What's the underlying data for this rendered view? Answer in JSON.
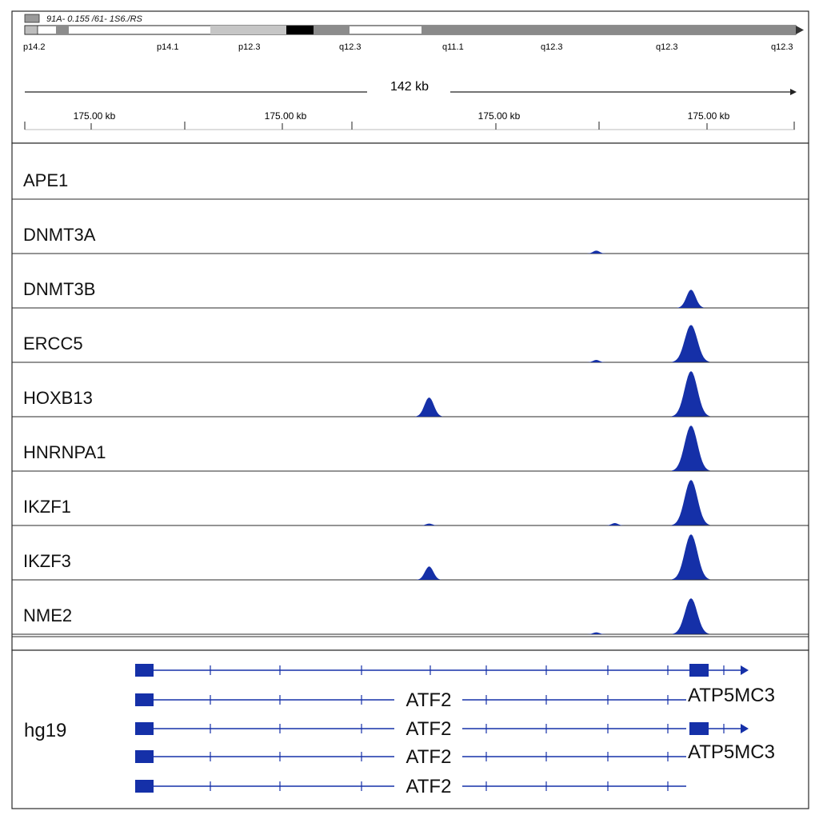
{
  "ideogram": {
    "title": "91A- 0.155 /61- 1S6./RS",
    "bands": [
      {
        "label": "p14.2",
        "shade": "#ffffff"
      },
      {
        "label": "p14.1",
        "shade": "#ffffff"
      },
      {
        "label": "p12.3",
        "shade": "#c8c8c8"
      },
      {
        "label": "q12.3",
        "shade": "#000000"
      },
      {
        "label": "q11.1",
        "shade": "#ffffff"
      },
      {
        "label": "q12.3",
        "shade": "#8c8c8c"
      },
      {
        "label": "q12.3",
        "shade": "#8c8c8c"
      },
      {
        "label": "q12.3",
        "shade": "#8c8c8c"
      }
    ]
  },
  "ruler": {
    "span_label": "142 kb",
    "ticks": [
      "175.00 kb",
      "175.00 kb",
      "175.00 kb",
      "175.00 kb"
    ]
  },
  "tracks": [
    {
      "name": "APE1",
      "peaks": []
    },
    {
      "name": "DNMT3A",
      "peaks": [
        {
          "pos": 0.742,
          "h": 0.06
        }
      ]
    },
    {
      "name": "DNMT3B",
      "peaks": [
        {
          "pos": 0.865,
          "h": 0.38
        }
      ]
    },
    {
      "name": "ERCC5",
      "peaks": [
        {
          "pos": 0.742,
          "h": 0.05
        },
        {
          "pos": 0.865,
          "h": 0.78
        }
      ]
    },
    {
      "name": "HOXB13",
      "peaks": [
        {
          "pos": 0.525,
          "h": 0.4
        },
        {
          "pos": 0.865,
          "h": 0.95
        }
      ]
    },
    {
      "name": "HNRNPA1",
      "peaks": [
        {
          "pos": 0.865,
          "h": 0.95
        }
      ]
    },
    {
      "name": "IKZF1",
      "peaks": [
        {
          "pos": 0.525,
          "h": 0.04
        },
        {
          "pos": 0.766,
          "h": 0.05
        },
        {
          "pos": 0.865,
          "h": 0.95
        }
      ]
    },
    {
      "name": "IKZF3",
      "peaks": [
        {
          "pos": 0.525,
          "h": 0.28
        },
        {
          "pos": 0.865,
          "h": 0.95
        }
      ]
    },
    {
      "name": "NME2",
      "peaks": [
        {
          "pos": 0.742,
          "h": 0.04
        },
        {
          "pos": 0.865,
          "h": 0.75
        }
      ]
    }
  ],
  "genes": {
    "assembly": "hg19",
    "rows": [
      {
        "label": "",
        "label2": "",
        "has_tail": true
      },
      {
        "label": "ATF2",
        "label2": "ATP5MC3",
        "has_tail": false
      },
      {
        "label": "ATF2",
        "label2": "",
        "has_tail": true
      },
      {
        "label": "ATF2",
        "label2": "ATP5MC3",
        "has_tail": false
      },
      {
        "label": "ATF2",
        "label2": "",
        "has_tail": false
      }
    ]
  },
  "colors": {
    "signal": "#1530a8",
    "gene": "#1530a8",
    "border": "#2a2a2a"
  }
}
